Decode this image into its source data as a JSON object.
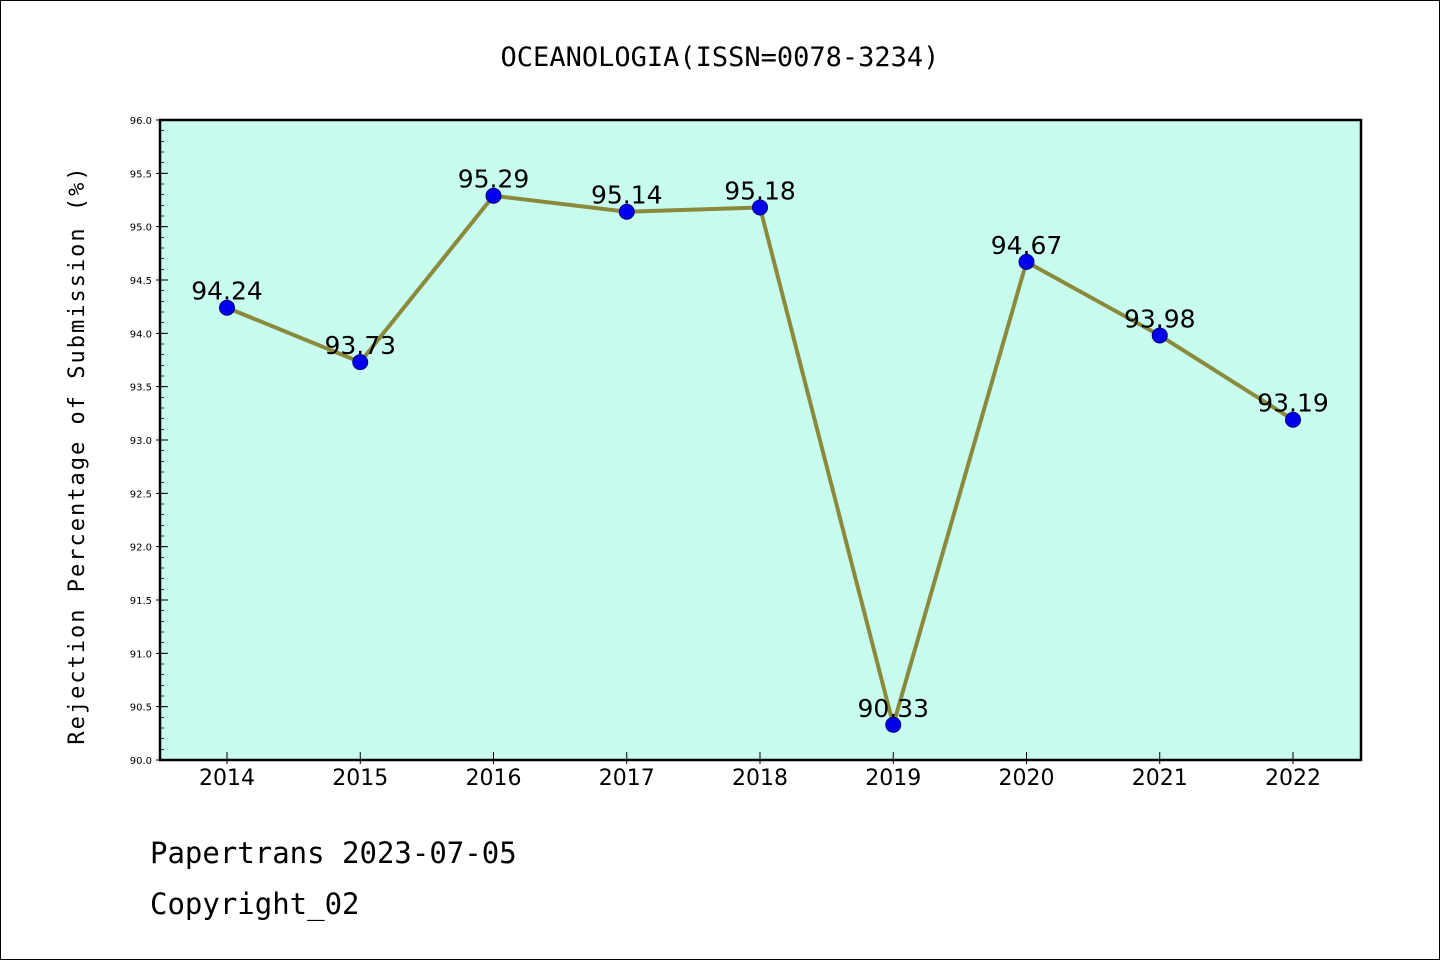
{
  "chart_data": {
    "type": "line",
    "title": "OCEANOLOGIA(ISSN=0078-3234)",
    "ylabel": "Rejection Percentage of Submission (%)",
    "xlabel": "",
    "categories": [
      "2014",
      "2015",
      "2016",
      "2017",
      "2018",
      "2019",
      "2020",
      "2021",
      "2022"
    ],
    "series": [
      {
        "values": [
          94.24,
          93.73,
          95.29,
          95.14,
          95.18,
          90.33,
          94.67,
          93.98,
          93.19
        ]
      }
    ],
    "data_labels": [
      "94.24",
      "93.73",
      "95.29",
      "95.14",
      "95.18",
      "90.33",
      "94.67",
      "93.98",
      "93.19"
    ],
    "ylim": [
      90.0,
      96.0
    ],
    "yticks": [
      "90.0",
      "90.5",
      "91.0",
      "91.5",
      "92.0",
      "92.5",
      "93.0",
      "93.5",
      "94.0",
      "94.5",
      "95.0",
      "95.5",
      "96.0"
    ],
    "grid": false,
    "colors": {
      "plot_background": "#c8fcee",
      "line": "#8b8a3c",
      "marker": "#0000ee"
    }
  },
  "footer": {
    "line1": "Papertrans 2023-07-05",
    "line2": "Copyright_02"
  }
}
